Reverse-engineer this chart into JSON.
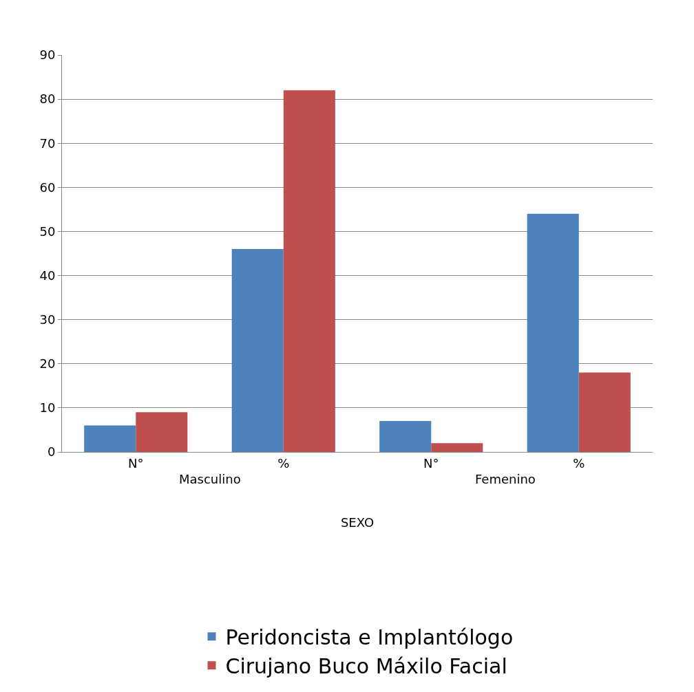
{
  "chart_data": {
    "type": "bar",
    "categories": [
      "N°",
      "%",
      "N°",
      "%"
    ],
    "series": [
      {
        "name": "Peridoncista e Implantólogo",
        "color": "#4f81bd",
        "values": [
          6,
          46,
          7,
          54
        ]
      },
      {
        "name": "Cirujano Buco Máxilo Facial",
        "color": "#c0504d",
        "values": [
          9,
          82,
          2,
          18
        ]
      }
    ],
    "annotations": [
      "Masculino",
      "Femenino"
    ],
    "xlabel": "SEXO",
    "ylim": [
      0,
      90
    ],
    "yticks": [
      0,
      10,
      20,
      30,
      40,
      50,
      60,
      70,
      80,
      90
    ],
    "grid": "y",
    "legend": "bottom"
  }
}
